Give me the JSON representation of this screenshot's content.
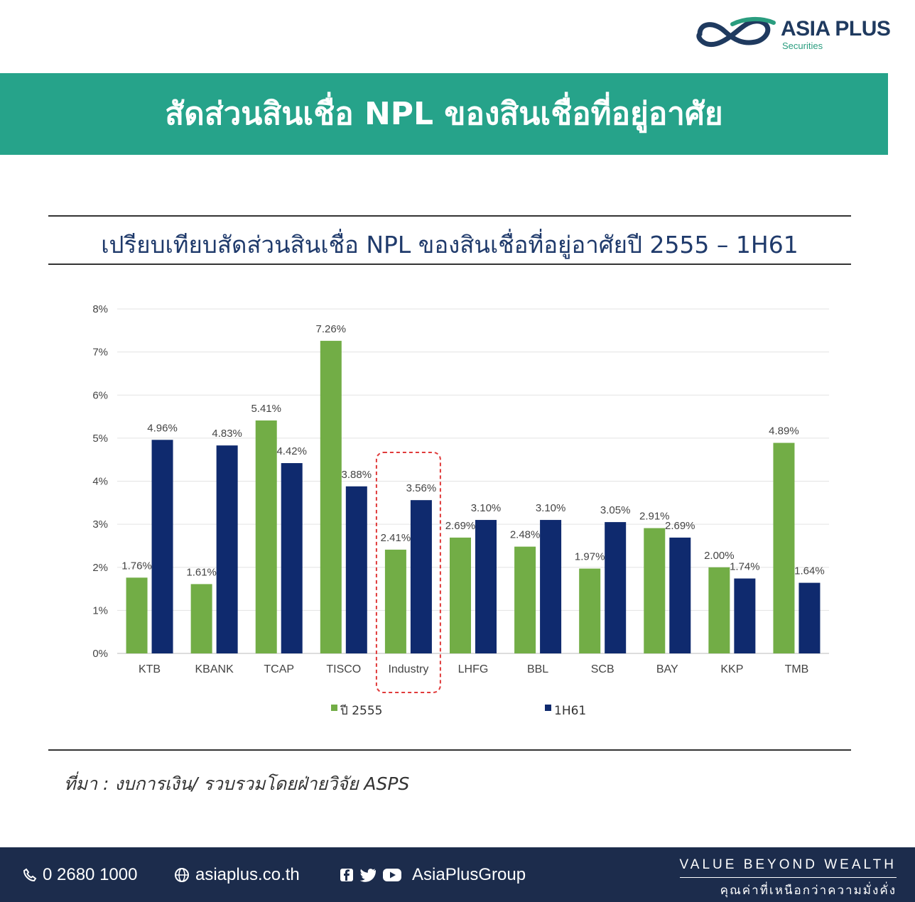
{
  "brand": {
    "name": "ASIA PLUS",
    "sub": "Securities",
    "mark_icon": "infinity-swoosh-logo"
  },
  "banner": {
    "title": "สัดส่วนสินเชื่อ NPL ของสินเชื่อที่อยู่อาศัย",
    "color": "#26a38a"
  },
  "subtitle": "เปรียบเทียบสัดส่วนสินเชื่อ NPL ของสินเชื่อที่อยู่อาศัยปี 2555 – 1H61",
  "chart_data": {
    "type": "bar",
    "categories": [
      "KTB",
      "KBANK",
      "TCAP",
      "TISCO",
      "Industry",
      "LHFG",
      "BBL",
      "SCB",
      "BAY",
      "KKP",
      "TMB"
    ],
    "series": [
      {
        "name": "ปี 2555",
        "color": "#72ad46",
        "values": [
          1.76,
          1.61,
          5.41,
          7.26,
          2.41,
          2.69,
          2.48,
          1.97,
          2.91,
          2.0,
          4.89
        ],
        "labels": [
          "1.76%",
          "1.61%",
          "5.41%",
          "7.26%",
          "2.41%",
          "2.69%",
          "2.48%",
          "1.97%",
          "2.91%",
          "2.00%",
          "4.89%"
        ]
      },
      {
        "name": "1H61",
        "color": "#0f2a6e",
        "values": [
          4.96,
          4.83,
          4.42,
          3.88,
          3.56,
          3.1,
          3.1,
          3.05,
          2.69,
          1.74,
          1.64
        ],
        "labels": [
          "4.96%",
          "4.83%",
          "4.42%",
          "3.88%",
          "3.56%",
          "3.10%",
          "3.10%",
          "3.05%",
          "2.69%",
          "1.74%",
          "1.64%"
        ]
      }
    ],
    "ylim": [
      0,
      8
    ],
    "yticks": [
      "0%",
      "1%",
      "2%",
      "3%",
      "4%",
      "5%",
      "6%",
      "7%",
      "8%"
    ],
    "grid": true,
    "legend_position": "bottom",
    "highlight_category": "Industry",
    "highlight_color": "#e03a3a"
  },
  "source": "ที่มา : งบการเงิน/ รวบรวมโดยฝ่ายวิจัย ASPS",
  "footer": {
    "phone": "0 2680 1000",
    "website": "asiaplus.co.th",
    "social": "AsiaPlusGroup",
    "tagline_en": "VALUE  BEYOND  WEALTH",
    "tagline_th": "คุณค่าที่เหนือกว่าความมั่งคั่ง",
    "color": "#1c2c4c"
  }
}
